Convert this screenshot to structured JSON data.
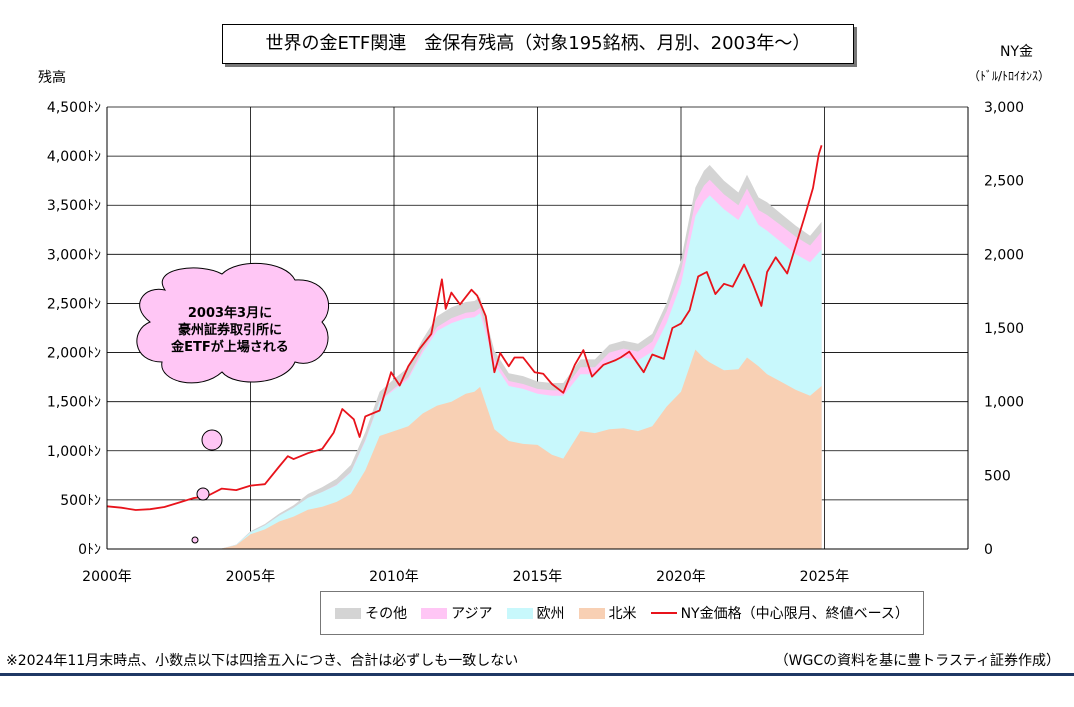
{
  "title": "世界の金ETF関連　金保有残高（対象195銘柄、月別、2003年～）",
  "left_axis_title": "残高",
  "right_axis_title": "NY金",
  "right_axis_unit": "（ﾄﾞﾙ/ﾄﾛｲｵﾝｽ）",
  "callout": {
    "line1": "2003年3月に",
    "line2": "豪州証券取引所に",
    "line3": "金ETFが上場される"
  },
  "legend": [
    {
      "label": "その他",
      "color": "#d4d4d4",
      "kind": "area"
    },
    {
      "label": "アジア",
      "color": "#ffc6f5",
      "kind": "area"
    },
    {
      "label": "欧州",
      "color": "#c8f8fc",
      "kind": "area"
    },
    {
      "label": "北米",
      "color": "#f8d0b4",
      "kind": "area"
    },
    {
      "label": "NY金価格（中心限月、終値ベース）",
      "color": "#e8131b",
      "kind": "line"
    }
  ],
  "footnote": "※2024年11月末時点、小数点以下は四捨五入につき、合計は必ずしも一致しない",
  "credit": "（WGCの資料を基に豊トラスティ証券作成）",
  "chart_data": {
    "type": "area",
    "x_ticks": [
      "2000年",
      "2005年",
      "2010年",
      "2015年",
      "2020年",
      "2025年"
    ],
    "x_tick_years": [
      2000,
      2005,
      2010,
      2015,
      2020,
      2025
    ],
    "xlim": [
      2000,
      2030
    ],
    "left_ticks": [
      "0ﾄﾝ",
      "500ﾄﾝ",
      "1,000ﾄﾝ",
      "1,500ﾄﾝ",
      "2,000ﾄﾝ",
      "2,500ﾄﾝ",
      "3,000ﾄﾝ",
      "3,500ﾄﾝ",
      "4,000ﾄﾝ",
      "4,500ﾄﾝ"
    ],
    "ylim_left": [
      0,
      4500
    ],
    "right_ticks": [
      "0",
      "500",
      "1,000",
      "1,500",
      "2,000",
      "2,500",
      "3,000"
    ],
    "ylim_right": [
      0,
      3000
    ],
    "grid": true,
    "stack_order": [
      "北米",
      "欧州",
      "アジア",
      "その他"
    ],
    "x": [
      2003.2,
      2004.0,
      2004.5,
      2005.0,
      2005.5,
      2006.0,
      2006.5,
      2007.0,
      2007.5,
      2008.0,
      2008.5,
      2009.0,
      2009.5,
      2010.0,
      2010.5,
      2011.0,
      2011.5,
      2012.0,
      2012.5,
      2012.8,
      2013.0,
      2013.5,
      2014.0,
      2014.5,
      2015.0,
      2015.5,
      2015.9,
      2016.5,
      2017.0,
      2017.5,
      2018.0,
      2018.5,
      2019.0,
      2019.5,
      2020.0,
      2020.5,
      2020.8,
      2021.0,
      2021.5,
      2022.0,
      2022.3,
      2022.7,
      2023.0,
      2023.5,
      2024.0,
      2024.5,
      2024.9
    ],
    "series": [
      {
        "name": "北米",
        "values": [
          0,
          5,
          40,
          150,
          200,
          280,
          330,
          400,
          430,
          480,
          560,
          800,
          1150,
          1200,
          1250,
          1380,
          1460,
          1500,
          1580,
          1600,
          1650,
          1220,
          1100,
          1070,
          1060,
          960,
          920,
          1200,
          1180,
          1220,
          1230,
          1200,
          1250,
          1450,
          1600,
          2030,
          1940,
          1900,
          1820,
          1830,
          1950,
          1860,
          1780,
          1700,
          1620,
          1560,
          1660
        ]
      },
      {
        "name": "欧州",
        "values": [
          0,
          0,
          5,
          20,
          40,
          60,
          90,
          120,
          150,
          170,
          220,
          300,
          350,
          420,
          480,
          620,
          760,
          800,
          770,
          760,
          750,
          660,
          560,
          560,
          520,
          600,
          640,
          580,
          600,
          700,
          720,
          720,
          760,
          850,
          1100,
          1360,
          1600,
          1700,
          1640,
          1520,
          1560,
          1440,
          1460,
          1420,
          1380,
          1360,
          1390
        ]
      },
      {
        "name": "アジア",
        "values": [
          0,
          0,
          0,
          0,
          0,
          0,
          0,
          0,
          0,
          5,
          5,
          10,
          10,
          15,
          20,
          30,
          40,
          50,
          55,
          55,
          55,
          50,
          50,
          50,
          50,
          55,
          55,
          70,
          70,
          80,
          90,
          90,
          100,
          120,
          130,
          150,
          160,
          160,
          150,
          150,
          160,
          150,
          160,
          170,
          180,
          170,
          180
        ]
      },
      {
        "name": "その他",
        "values": [
          0,
          0,
          0,
          10,
          15,
          20,
          25,
          40,
          50,
          60,
          70,
          80,
          90,
          95,
          100,
          105,
          110,
          110,
          110,
          110,
          110,
          90,
          80,
          80,
          75,
          75,
          75,
          80,
          80,
          80,
          80,
          80,
          80,
          85,
          110,
          140,
          150,
          150,
          140,
          130,
          140,
          130,
          130,
          120,
          110,
          100,
          100
        ]
      }
    ],
    "price_series": {
      "name": "NY金価格（中心限月、終値ベース）",
      "axis": "right",
      "x": [
        2000.0,
        2000.5,
        2001.0,
        2001.5,
        2002.0,
        2002.5,
        2003.0,
        2003.5,
        2004.0,
        2004.5,
        2005.0,
        2005.5,
        2006.0,
        2006.3,
        2006.5,
        2007.0,
        2007.5,
        2007.9,
        2008.2,
        2008.6,
        2008.8,
        2009.0,
        2009.5,
        2009.9,
        2010.2,
        2010.5,
        2010.9,
        2011.3,
        2011.67,
        2011.8,
        2012.0,
        2012.3,
        2012.7,
        2012.9,
        2013.2,
        2013.5,
        2013.7,
        2014.0,
        2014.2,
        2014.5,
        2014.9,
        2015.2,
        2015.5,
        2015.9,
        2016.3,
        2016.6,
        2016.9,
        2017.3,
        2017.7,
        2017.9,
        2018.2,
        2018.7,
        2019.0,
        2019.4,
        2019.7,
        2020.0,
        2020.3,
        2020.6,
        2020.9,
        2021.2,
        2021.5,
        2021.8,
        2022.2,
        2022.5,
        2022.8,
        2023.0,
        2023.3,
        2023.7,
        2024.0,
        2024.3,
        2024.6,
        2024.8,
        2024.9
      ],
      "values": [
        290,
        280,
        265,
        270,
        285,
        315,
        345,
        360,
        410,
        400,
        430,
        440,
        560,
        630,
        610,
        650,
        680,
        790,
        950,
        880,
        760,
        900,
        940,
        1200,
        1110,
        1240,
        1360,
        1460,
        1830,
        1630,
        1740,
        1660,
        1760,
        1720,
        1580,
        1200,
        1330,
        1240,
        1300,
        1300,
        1200,
        1190,
        1120,
        1060,
        1250,
        1350,
        1170,
        1250,
        1280,
        1300,
        1340,
        1200,
        1320,
        1290,
        1500,
        1530,
        1620,
        1850,
        1880,
        1730,
        1800,
        1780,
        1930,
        1800,
        1650,
        1880,
        1980,
        1870,
        2060,
        2250,
        2450,
        2680,
        2740
      ]
    }
  }
}
